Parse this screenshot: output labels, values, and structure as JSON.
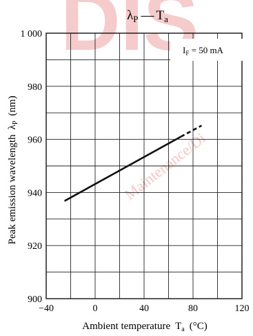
{
  "watermark": {
    "big_text": "DIS",
    "diag_text": "Maintenance/Di",
    "color": "#f5c6c6"
  },
  "chart_data": {
    "type": "line",
    "title": {
      "symbol": "λ",
      "sub1": "P",
      "dash": "—",
      "t": "T",
      "sub2": "a"
    },
    "xlabel": {
      "main": "Ambient temperature",
      "t": "T",
      "sub": "a",
      "unit": "(°C)"
    },
    "ylabel": {
      "main": "Peak emission wavelength",
      "symbol": "λ",
      "sub": "P",
      "unit": "(nm)"
    },
    "xlim": [
      -40,
      120
    ],
    "ylim": [
      900,
      1000
    ],
    "x_ticks": [
      -40,
      0,
      40,
      80,
      120
    ],
    "x_tick_labels": [
      "−40",
      "0",
      "40",
      "80",
      "120"
    ],
    "y_ticks": [
      900,
      920,
      940,
      960,
      980,
      1000
    ],
    "y_tick_labels": [
      "900",
      "920",
      "940",
      "960",
      "980",
      "1 000"
    ],
    "x_grid": [
      -40,
      -20,
      0,
      20,
      40,
      60,
      80,
      100,
      120
    ],
    "y_grid": [
      900,
      910,
      920,
      930,
      940,
      950,
      960,
      970,
      980,
      990,
      1000
    ],
    "grid": true,
    "annotation": {
      "text_main": "I",
      "text_sub": "F",
      "text_rest": " = 50 mA",
      "placement": "top-right"
    },
    "series": [
      {
        "style": "solid",
        "x": [
          -25,
          70
        ],
        "y": [
          936.8,
          961
        ]
      },
      {
        "style": "dashed",
        "x": [
          70,
          87
        ],
        "y": [
          961,
          965.2
        ]
      }
    ]
  }
}
